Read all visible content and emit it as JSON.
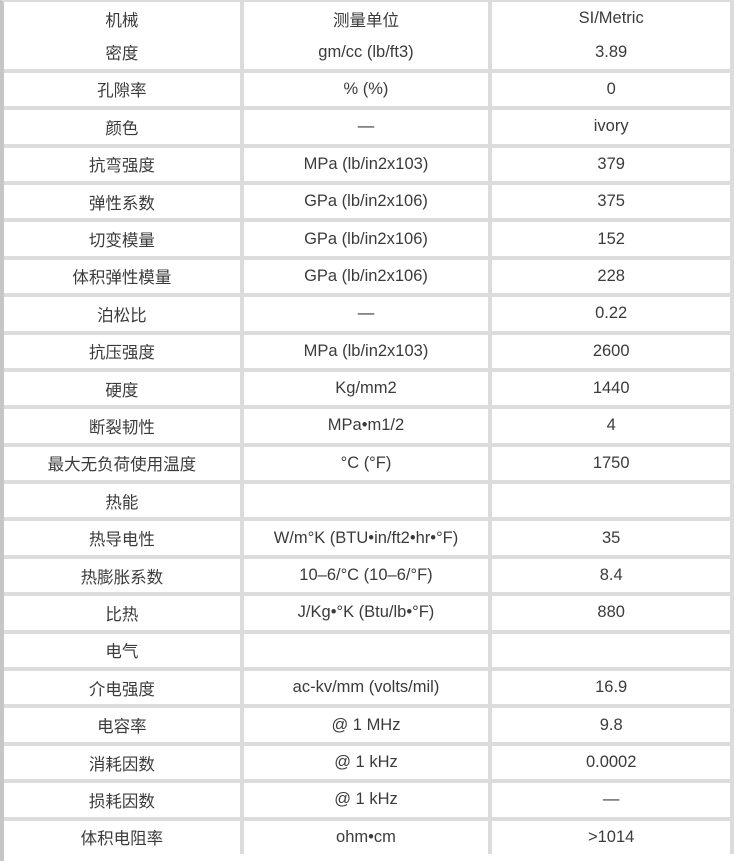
{
  "page": {
    "background": "#ffffff"
  },
  "colors": {
    "grid_border": "#dcdcdc",
    "left_edge": "#c6c6c6",
    "text": "#3b3b3b",
    "cell_background": "#ffffff"
  },
  "table": {
    "columns": [
      "机械",
      "测量单位",
      "SI/Metric"
    ],
    "rows": [
      {
        "property": "密度",
        "unit": "gm/cc (lb/ft3)",
        "value": "3.89"
      },
      {
        "property": "孔隙率",
        "unit": "% (%)",
        "value": "0"
      },
      {
        "property": "颜色",
        "unit": "—",
        "value": "ivory"
      },
      {
        "property": "抗弯强度",
        "unit": "MPa (lb/in2x103)",
        "value": "379"
      },
      {
        "property": "弹性系数",
        "unit": "GPa (lb/in2x106)",
        "value": "375"
      },
      {
        "property": "切变模量",
        "unit": "GPa (lb/in2x106)",
        "value": "152"
      },
      {
        "property": "体积弹性模量",
        "unit": "GPa (lb/in2x106)",
        "value": "228"
      },
      {
        "property": "泊松比",
        "unit": "—",
        "value": "0.22"
      },
      {
        "property": "抗压强度",
        "unit": "MPa (lb/in2x103)",
        "value": "2600"
      },
      {
        "property": "硬度",
        "unit": "Kg/mm2",
        "value": "1440"
      },
      {
        "property": "断裂韧性",
        "unit": "MPa•m1/2",
        "value": "4"
      },
      {
        "property": "最大无负荷使用温度",
        "unit": "°C (°F)",
        "value": "1750"
      },
      {
        "property": "热能",
        "unit": "",
        "value": ""
      },
      {
        "property": "热导电性",
        "unit": "W/m°K (BTU•in/ft2•hr•°F)",
        "value": "35"
      },
      {
        "property": "热膨胀系数",
        "unit": "10–6/°C (10–6/°F)",
        "value": "8.4"
      },
      {
        "property": "比热",
        "unit": "J/Kg•°K (Btu/lb•°F)",
        "value": "880"
      },
      {
        "property": "电气",
        "unit": "",
        "value": ""
      },
      {
        "property": "介电强度",
        "unit": "ac-kv/mm (volts/mil)",
        "value": "16.9"
      },
      {
        "property": "电容率",
        "unit": "@ 1 MHz",
        "value": "9.8"
      },
      {
        "property": "消耗因数",
        "unit": "@ 1 kHz",
        "value": "0.0002"
      },
      {
        "property": "损耗因数",
        "unit": "@ 1 kHz",
        "value": "—"
      },
      {
        "property": "体积电阻率",
        "unit": "ohm•cm",
        "value": ">1014"
      }
    ]
  }
}
